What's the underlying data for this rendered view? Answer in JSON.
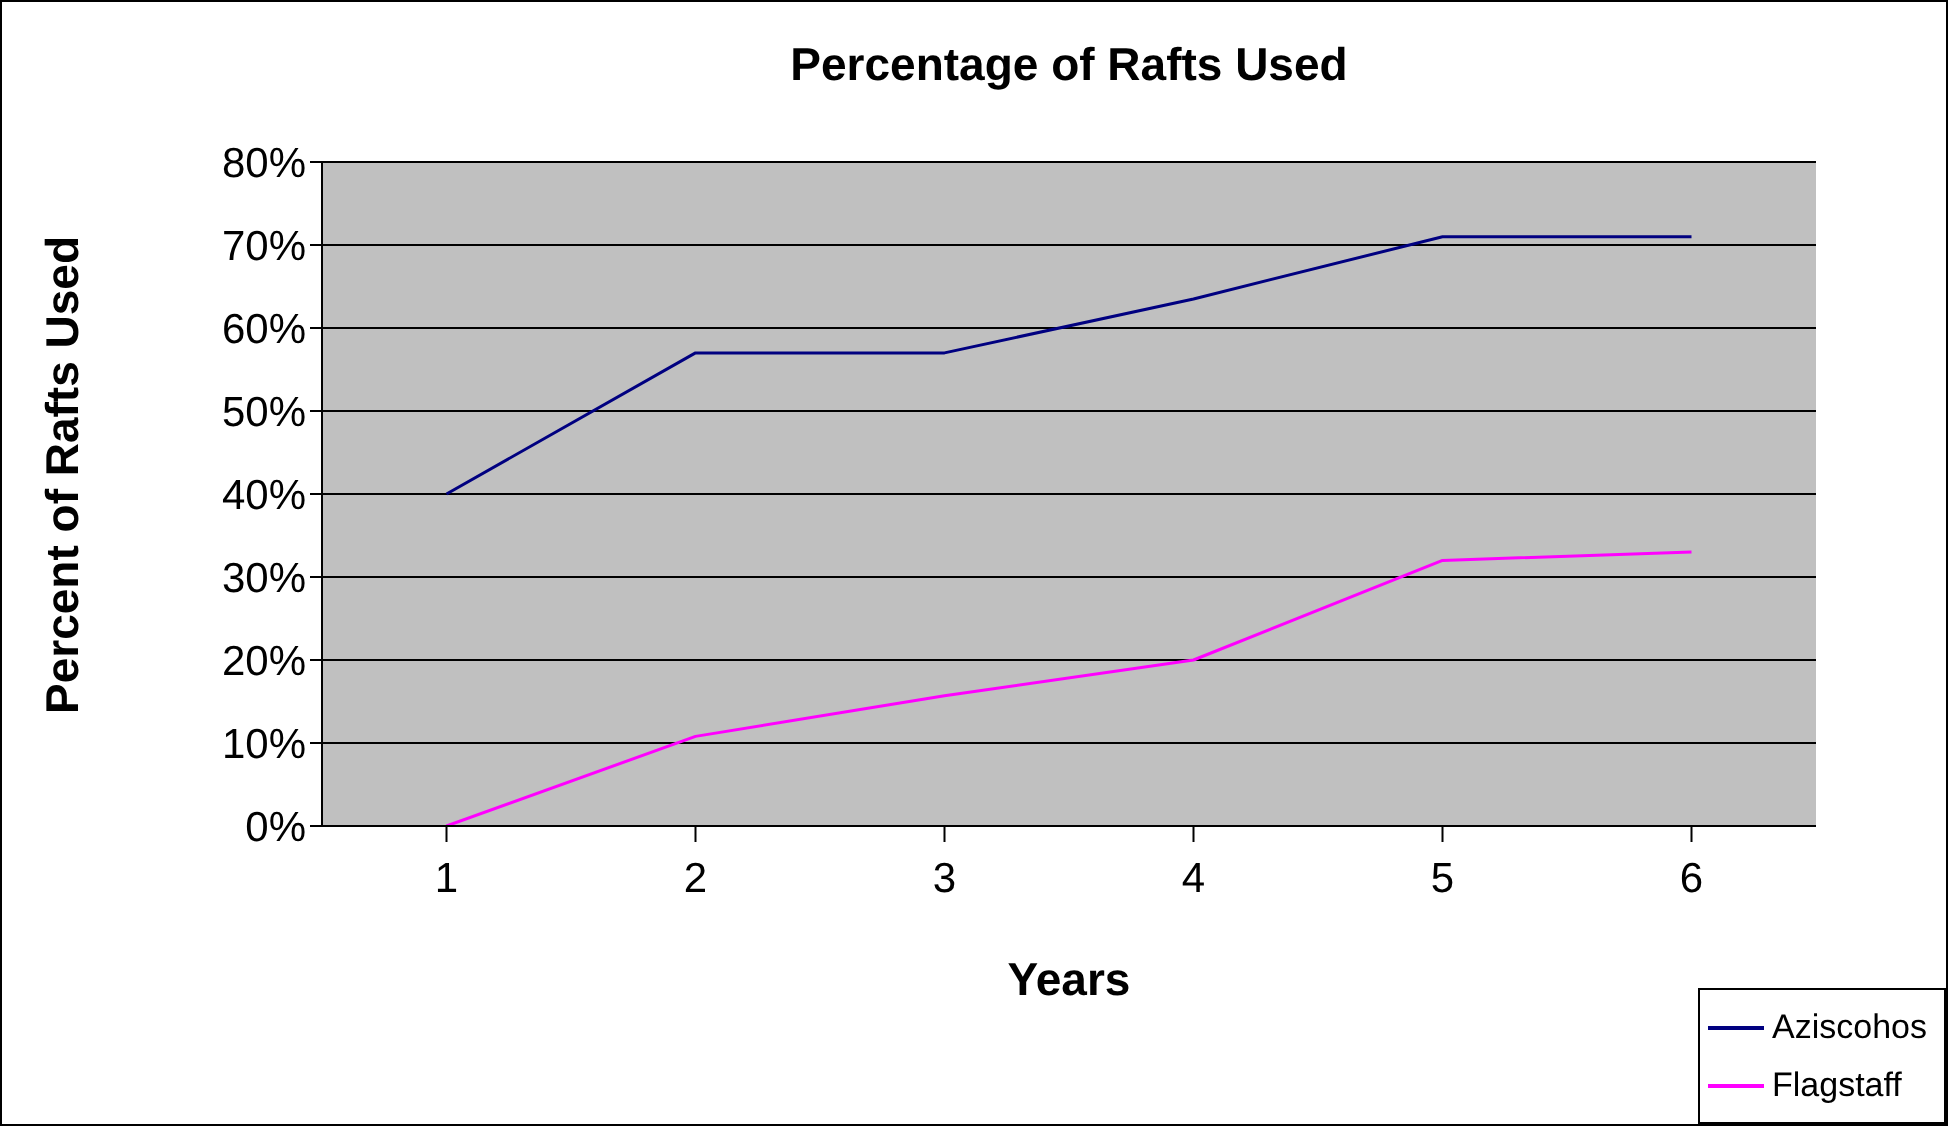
{
  "chart_data": {
    "type": "line",
    "title": "Percentage of Rafts Used",
    "xlabel": "Years",
    "ylabel": "Percent of Rafts Used",
    "categories": [
      "1",
      "2",
      "3",
      "4",
      "5",
      "6"
    ],
    "series": [
      {
        "name": "Aziscohos",
        "color": "#000080",
        "values": [
          40,
          57,
          57,
          63.5,
          71,
          71
        ]
      },
      {
        "name": "Flagstaff",
        "color": "#ff00ff",
        "values": [
          0,
          10.8,
          15.7,
          20,
          32,
          33
        ]
      }
    ],
    "ylim": [
      0,
      80
    ],
    "yticks": [
      {
        "value": 0,
        "label": "0%"
      },
      {
        "value": 10,
        "label": "10%"
      },
      {
        "value": 20,
        "label": "20%"
      },
      {
        "value": 30,
        "label": "30%"
      },
      {
        "value": 40,
        "label": "40%"
      },
      {
        "value": 50,
        "label": "50%"
      },
      {
        "value": 60,
        "label": "60%"
      },
      {
        "value": 70,
        "label": "70%"
      },
      {
        "value": 80,
        "label": "80%"
      }
    ],
    "grid": "y",
    "legend": "bottom right",
    "marker": "none",
    "line_style": "solid"
  }
}
